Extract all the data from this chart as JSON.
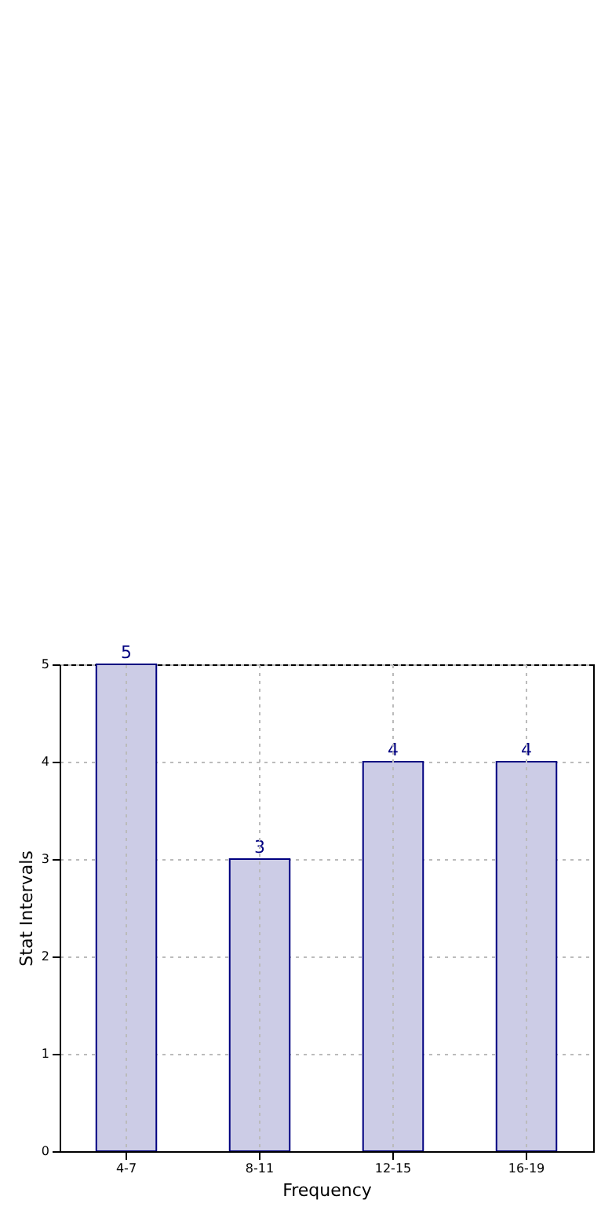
{
  "chart_data": {
    "type": "bar",
    "xlabel": "Frequency",
    "ylabel": "Stat Intervals",
    "categories": [
      "4-7",
      "8-11",
      "12-15",
      "16-19"
    ],
    "values": [
      5,
      3,
      4,
      4
    ],
    "color": "#ccccE6",
    "ylim": [
      0,
      5
    ],
    "yticks": [
      0,
      1,
      2,
      3,
      4,
      5
    ],
    "grid": true,
    "data_labels": true
  }
}
